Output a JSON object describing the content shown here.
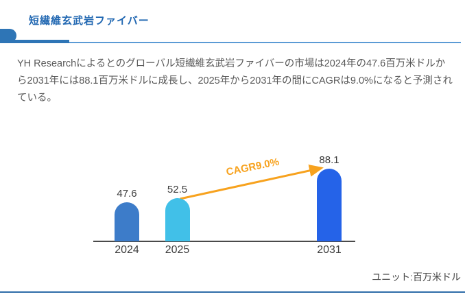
{
  "page": {
    "title": "短繊維玄武岩ファイバー",
    "description": "YH Researchによるとのグローバル短繊維玄武岩ファイバーの市場は2024年の47.6百万米ドルから2031年には88.1百万米ドルに成長し、2025年から2031年の間にCAGRは9.0%になると予測されている。",
    "unit_label": "ユニット:百万米ドル"
  },
  "colors": {
    "title_blue": "#2268b2",
    "accent_blue": "#2e75b6",
    "thin_divider_blue": "#5b9bd5",
    "bottom_border_blue": "#2e6ca8",
    "body_text_gray": "#595959",
    "axis_gray": "#4a4a4a",
    "arrow_orange": "#f7a21e"
  },
  "chart_data": {
    "type": "bar",
    "title": "",
    "xlabel": "",
    "ylabel": "",
    "unit": "百万米ドル",
    "categories": [
      "2024",
      "2025",
      "2031"
    ],
    "values": [
      47.6,
      52.5,
      88.1
    ],
    "value_labels": [
      "47.6",
      "52.5",
      "88.1"
    ],
    "bar_colors": [
      "#3d7cc9",
      "#41c0e8",
      "#2563e8"
    ],
    "ylim": [
      0,
      110
    ],
    "grid": false,
    "legend": false,
    "annotation": {
      "label": "CAGR9.0%",
      "from_category": "2025",
      "to_category": "2031",
      "color": "#f7a21e"
    }
  }
}
